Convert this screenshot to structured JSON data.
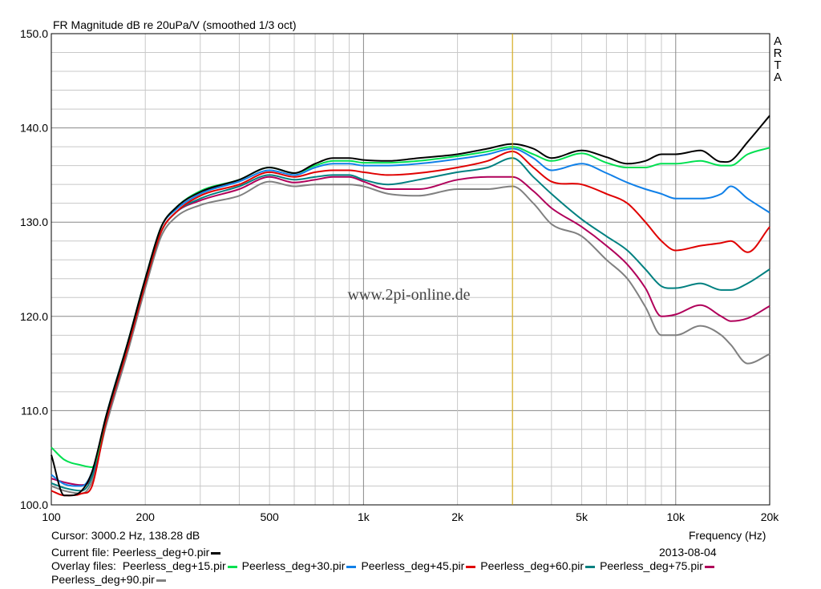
{
  "chart_data": {
    "type": "line",
    "title": "FR Magnitude dB re 20uPa/V (smoothed 1/3 oct)",
    "xlabel": "Frequency (Hz)",
    "ylabel": "",
    "xscale": "log",
    "xlim": [
      100,
      20000
    ],
    "ylim": [
      100,
      150
    ],
    "x_ticks": [
      100,
      200,
      500,
      1000,
      2000,
      5000,
      10000,
      20000
    ],
    "x_tick_labels": [
      "100",
      "200",
      "500",
      "1k",
      "2k",
      "5k",
      "10k",
      "20k"
    ],
    "y_ticks": [
      100,
      110,
      120,
      130,
      140,
      150
    ],
    "y_tick_labels": [
      "100.0",
      "110.0",
      "120.0",
      "130.0",
      "140.0",
      "150.0"
    ],
    "grid": true,
    "cursor_x": 3000.2,
    "x": [
      100,
      110,
      125,
      135,
      150,
      175,
      200,
      225,
      250,
      300,
      400,
      500,
      600,
      700,
      800,
      900,
      1000,
      1200,
      1500,
      2000,
      2500,
      3000,
      3500,
      4000,
      5000,
      6000,
      7000,
      8000,
      9000,
      10000,
      12000,
      14000,
      15000,
      17000,
      20000
    ],
    "series": [
      {
        "name": "Peerless_deg+0.pir",
        "color": "#000000",
        "values": [
          105.3,
          101.0,
          101.5,
          103.5,
          109.5,
          117.0,
          124.0,
          129.5,
          131.5,
          133.2,
          134.5,
          135.8,
          135.2,
          136.2,
          136.8,
          136.8,
          136.6,
          136.5,
          136.8,
          137.2,
          137.8,
          138.3,
          137.8,
          136.8,
          137.6,
          136.9,
          136.2,
          136.5,
          137.2,
          137.2,
          137.6,
          136.4,
          136.5,
          138.5,
          141.3
        ]
      },
      {
        "name": "Peerless_deg+15.pir",
        "color": "#00e050",
        "values": [
          106.1,
          104.8,
          104.2,
          104.0,
          109.5,
          117.0,
          124.0,
          129.5,
          131.5,
          133.3,
          134.5,
          135.8,
          135.2,
          136.0,
          136.5,
          136.5,
          136.3,
          136.3,
          136.5,
          137.0,
          137.5,
          138.0,
          137.2,
          136.5,
          137.3,
          136.3,
          135.8,
          135.8,
          136.2,
          136.2,
          136.5,
          136.0,
          136.0,
          137.2,
          137.9
        ]
      },
      {
        "name": "Peerless_deg+30.pir",
        "color": "#1080e8",
        "values": [
          103.2,
          102.2,
          102.0,
          103.5,
          109.5,
          117.0,
          124.0,
          129.5,
          131.3,
          133.0,
          134.3,
          135.5,
          135.0,
          135.8,
          136.2,
          136.2,
          136.0,
          136.0,
          136.2,
          136.7,
          137.2,
          137.8,
          136.8,
          135.5,
          136.2,
          135.2,
          134.2,
          133.5,
          133.0,
          132.5,
          132.5,
          133.0,
          133.8,
          132.5,
          131.0
        ]
      },
      {
        "name": "Peerless_deg+45.pir",
        "color": "#e00000",
        "values": [
          101.5,
          101.0,
          101.2,
          102.0,
          109.0,
          116.5,
          123.5,
          129.0,
          131.0,
          132.8,
          134.0,
          135.3,
          134.8,
          135.3,
          135.5,
          135.5,
          135.3,
          135.0,
          135.2,
          135.8,
          136.5,
          137.5,
          135.8,
          134.3,
          134.0,
          133.0,
          132.0,
          130.0,
          128.0,
          127.0,
          127.5,
          127.8,
          128.0,
          126.8,
          129.5
        ]
      },
      {
        "name": "Peerless_deg+60.pir",
        "color": "#008080",
        "values": [
          102.3,
          101.8,
          101.5,
          103.0,
          109.5,
          117.0,
          123.5,
          129.0,
          131.0,
          132.5,
          133.8,
          135.0,
          134.5,
          134.8,
          135.0,
          135.0,
          134.5,
          134.0,
          134.5,
          135.3,
          135.8,
          136.8,
          134.8,
          133.0,
          130.3,
          128.5,
          127.0,
          125.0,
          123.2,
          123.0,
          123.5,
          122.8,
          122.8,
          123.5,
          125.0
        ]
      },
      {
        "name": "Peerless_deg+75.pir",
        "color": "#b0005a",
        "values": [
          102.8,
          102.4,
          102.1,
          103.0,
          109.0,
          116.5,
          123.5,
          129.0,
          131.0,
          132.3,
          133.5,
          134.8,
          134.2,
          134.5,
          134.8,
          134.8,
          134.3,
          133.5,
          133.5,
          134.5,
          134.8,
          134.8,
          133.3,
          131.5,
          129.5,
          127.5,
          125.5,
          123.0,
          120.0,
          120.2,
          121.2,
          120.0,
          119.5,
          119.8,
          121.1
        ]
      },
      {
        "name": "Peerless_deg+90.pir",
        "color": "#808080",
        "values": [
          102.0,
          101.5,
          101.2,
          102.5,
          108.5,
          116.0,
          123.0,
          128.5,
          130.5,
          131.8,
          132.8,
          134.3,
          133.8,
          134.0,
          134.0,
          134.0,
          133.8,
          133.0,
          132.8,
          133.5,
          133.5,
          133.8,
          132.0,
          129.8,
          128.5,
          126.0,
          124.0,
          121.0,
          118.0,
          118.0,
          119.0,
          118.0,
          117.0,
          115.0,
          116.0
        ]
      }
    ]
  },
  "branding": {
    "vertical_label": "ARTA",
    "watermark": "www.2pi-online.de"
  },
  "footer": {
    "cursor": "Cursor: 3000.2 Hz, 138.28 dB",
    "frequency_label": "Frequency (Hz)",
    "current_file_label": "Current file: Peerless_deg+0.pir",
    "date": "2013-08-04",
    "overlay_prefix": "Overlay files:"
  }
}
